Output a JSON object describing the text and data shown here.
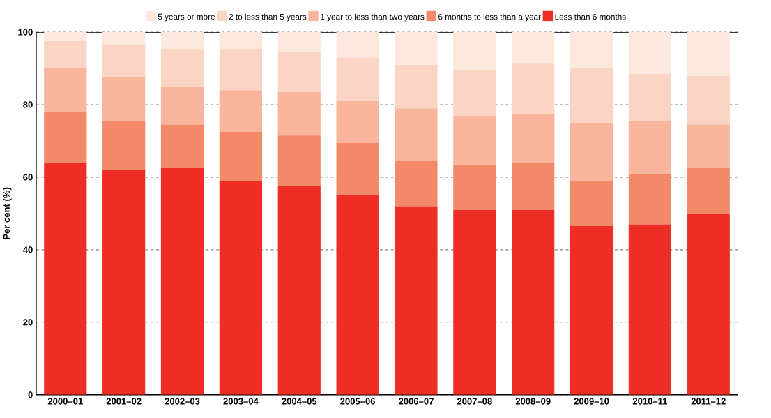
{
  "chart_data": {
    "type": "bar",
    "stacked": true,
    "ylabel": "Per cent (%)",
    "categories": [
      "2000–01",
      "2001–02",
      "2002–03",
      "2003–04",
      "2004–05",
      "2005–06",
      "2006–07",
      "2007–08",
      "2008–09",
      "2009–10",
      "2010–11",
      "2011–12"
    ],
    "series": [
      {
        "name": "Less than 6 months",
        "color": "#ee2e24",
        "values": [
          64,
          62,
          62.5,
          59,
          57.5,
          55,
          52,
          51,
          51,
          46.5,
          47,
          50
        ]
      },
      {
        "name": "6 months to less than a year",
        "color": "#f4896a",
        "values": [
          14,
          13.5,
          12,
          13.5,
          14,
          14.5,
          12.5,
          12.5,
          13,
          12.5,
          14,
          12.5
        ]
      },
      {
        "name": "1 year to less than two years",
        "color": "#f9b59c",
        "values": [
          12,
          12,
          10.5,
          11.5,
          12,
          11.5,
          14.5,
          13.5,
          13.5,
          16,
          14.5,
          12
        ]
      },
      {
        "name": "2 to less than 5 years",
        "color": "#fbd5c3",
        "values": [
          7.5,
          9,
          10.5,
          11.5,
          11,
          12,
          12,
          12.5,
          14,
          15,
          13,
          13.5
        ]
      },
      {
        "name": "5 years or more",
        "color": "#fde8dd",
        "values": [
          2.5,
          3.5,
          4.5,
          4.5,
          5.5,
          7,
          9,
          10.5,
          8.5,
          10,
          11.5,
          12
        ]
      }
    ],
    "ylim": [
      0,
      100
    ],
    "yticks": [
      0,
      20,
      40,
      60,
      80,
      100
    ],
    "grid": "y",
    "legend": "top"
  }
}
